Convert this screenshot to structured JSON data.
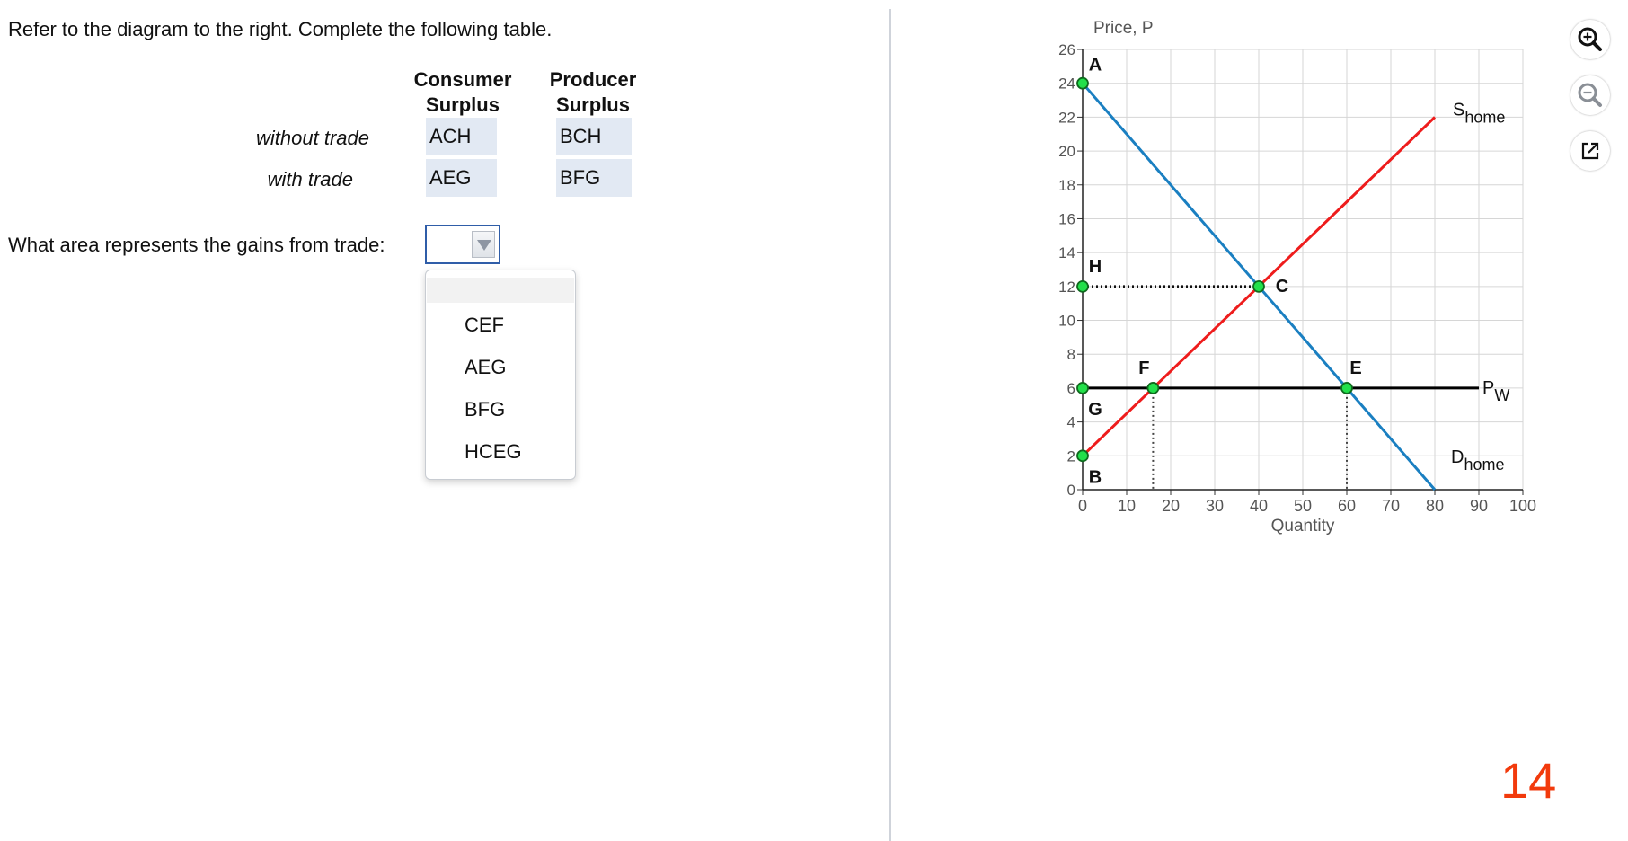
{
  "question": {
    "intro": "Refer to the diagram to the right. Complete the following table.",
    "col_consumer": [
      "Consumer",
      "Surplus"
    ],
    "col_producer": [
      "Producer",
      "Surplus"
    ],
    "rows": [
      {
        "label": "without trade",
        "consumer": "ACH",
        "producer": "BCH"
      },
      {
        "label": "with trade",
        "consumer": "AEG",
        "producer": "BFG"
      }
    ],
    "gains_prompt": "What area represents the gains from trade:",
    "dropdown": {
      "selected": "",
      "options": [
        "CEF",
        "AEG",
        "BFG",
        "HCEG"
      ]
    }
  },
  "page_number": "14",
  "toolbar": {
    "icons": [
      "zoom-in-icon",
      "zoom-out-icon",
      "open-external-icon"
    ]
  },
  "chart_data": {
    "type": "line",
    "ylabel": "Price, P",
    "xlabel": "Quantity",
    "xlim": [
      0,
      100
    ],
    "ylim": [
      0,
      26
    ],
    "x_ticks": [
      0,
      10,
      20,
      30,
      40,
      50,
      60,
      70,
      80,
      90,
      100
    ],
    "y_ticks": [
      0,
      2,
      4,
      6,
      8,
      10,
      12,
      14,
      16,
      18,
      20,
      22,
      24,
      26
    ],
    "grid": true,
    "colors": {
      "demand": "#1a7fc1",
      "supply": "#ee1c1c",
      "world": "#000000",
      "point": "#22e04a",
      "tick_label": "#555555"
    },
    "series": [
      {
        "name": "D",
        "sub": "home",
        "x": [
          0,
          80
        ],
        "y": [
          24,
          0
        ]
      },
      {
        "name": "S",
        "sub": "home",
        "x": [
          0,
          80
        ],
        "y": [
          2,
          22
        ]
      },
      {
        "name": "P",
        "sub": "W",
        "x": [
          0,
          90
        ],
        "y": [
          6,
          6
        ]
      }
    ],
    "points": [
      {
        "label": "A",
        "x": 0,
        "y": 24
      },
      {
        "label": "H",
        "x": 0,
        "y": 12
      },
      {
        "label": "C",
        "x": 40,
        "y": 12
      },
      {
        "label": "G",
        "x": 0,
        "y": 6
      },
      {
        "label": "B",
        "x": 0,
        "y": 2
      },
      {
        "label": "F",
        "x": 16,
        "y": 6
      },
      {
        "label": "E",
        "x": 60,
        "y": 6
      }
    ]
  }
}
